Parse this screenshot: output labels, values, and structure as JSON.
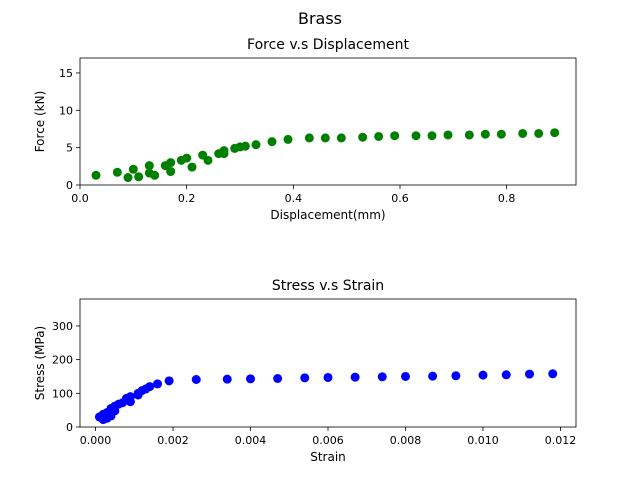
{
  "figure_title": "Brass",
  "chart_data": [
    {
      "type": "scatter",
      "title": "Force v.s Displacement",
      "xlabel": "Displacement(mm)",
      "ylabel": "Force (kN)",
      "xlim": [
        -0.0,
        0.93
      ],
      "ylim": [
        0,
        17
      ],
      "xticks": [
        0.0,
        0.2,
        0.4,
        0.6,
        0.8
      ],
      "xtick_labels": [
        "0.0",
        "0.2",
        "0.4",
        "0.6",
        "0.8"
      ],
      "yticks": [
        0,
        5,
        10,
        15
      ],
      "ytick_labels": [
        "0",
        "5",
        "10",
        "15"
      ],
      "grid": false,
      "series": [
        {
          "color": "#008000",
          "points": [
            [
              0.03,
              1.3
            ],
            [
              0.07,
              1.7
            ],
            [
              0.09,
              1.0
            ],
            [
              0.1,
              2.1
            ],
            [
              0.11,
              1.1
            ],
            [
              0.13,
              2.6
            ],
            [
              0.13,
              1.6
            ],
            [
              0.14,
              1.3
            ],
            [
              0.16,
              2.6
            ],
            [
              0.17,
              3.0
            ],
            [
              0.17,
              1.8
            ],
            [
              0.19,
              3.3
            ],
            [
              0.2,
              3.6
            ],
            [
              0.21,
              2.4
            ],
            [
              0.23,
              4.0
            ],
            [
              0.24,
              3.3
            ],
            [
              0.26,
              4.2
            ],
            [
              0.27,
              4.6
            ],
            [
              0.27,
              4.2
            ],
            [
              0.29,
              4.9
            ],
            [
              0.3,
              5.1
            ],
            [
              0.31,
              5.2
            ],
            [
              0.33,
              5.4
            ],
            [
              0.36,
              5.8
            ],
            [
              0.39,
              6.1
            ],
            [
              0.43,
              6.3
            ],
            [
              0.46,
              6.3
            ],
            [
              0.49,
              6.3
            ],
            [
              0.53,
              6.4
            ],
            [
              0.56,
              6.5
            ],
            [
              0.59,
              6.6
            ],
            [
              0.63,
              6.6
            ],
            [
              0.66,
              6.6
            ],
            [
              0.69,
              6.7
            ],
            [
              0.73,
              6.7
            ],
            [
              0.76,
              6.8
            ],
            [
              0.79,
              6.8
            ],
            [
              0.83,
              6.9
            ],
            [
              0.86,
              6.9
            ],
            [
              0.89,
              7.0
            ]
          ]
        }
      ]
    },
    {
      "type": "scatter",
      "title": "Stress v.s Strain",
      "xlabel": "Strain",
      "ylabel": "Stress (MPa)",
      "xlim": [
        -0.0004,
        0.0124
      ],
      "ylim": [
        0,
        380
      ],
      "xticks": [
        0.0,
        0.002,
        0.004,
        0.006,
        0.008,
        0.01,
        0.012
      ],
      "xtick_labels": [
        "0.000",
        "0.002",
        "0.004",
        "0.006",
        "0.008",
        "0.010",
        "0.012"
      ],
      "yticks": [
        0,
        100,
        200,
        300
      ],
      "ytick_labels": [
        "0",
        "100",
        "200",
        "300"
      ],
      "grid": false,
      "series": [
        {
          "color": "#0000ff",
          "points": [
            [
              0.0001,
              30
            ],
            [
              0.0002,
              22
            ],
            [
              0.0002,
              38
            ],
            [
              0.0003,
              26
            ],
            [
              0.0003,
              43
            ],
            [
              0.0004,
              33
            ],
            [
              0.0004,
              55
            ],
            [
              0.0005,
              48
            ],
            [
              0.0005,
              62
            ],
            [
              0.0006,
              68
            ],
            [
              0.0007,
              72
            ],
            [
              0.0008,
              85
            ],
            [
              0.0009,
              75
            ],
            [
              0.0009,
              90
            ],
            [
              0.0011,
              100
            ],
            [
              0.0011,
              95
            ],
            [
              0.0012,
              108
            ],
            [
              0.0013,
              113
            ],
            [
              0.0014,
              120
            ],
            [
              0.0016,
              128
            ],
            [
              0.0019,
              137
            ],
            [
              0.0026,
              141
            ],
            [
              0.0034,
              142
            ],
            [
              0.004,
              143
            ],
            [
              0.0047,
              144
            ],
            [
              0.0054,
              146
            ],
            [
              0.006,
              147
            ],
            [
              0.0067,
              148
            ],
            [
              0.0074,
              149
            ],
            [
              0.008,
              150
            ],
            [
              0.0087,
              151
            ],
            [
              0.0093,
              152
            ],
            [
              0.01,
              154
            ],
            [
              0.0106,
              155
            ],
            [
              0.0112,
              157
            ],
            [
              0.0118,
              158
            ]
          ]
        }
      ]
    }
  ]
}
